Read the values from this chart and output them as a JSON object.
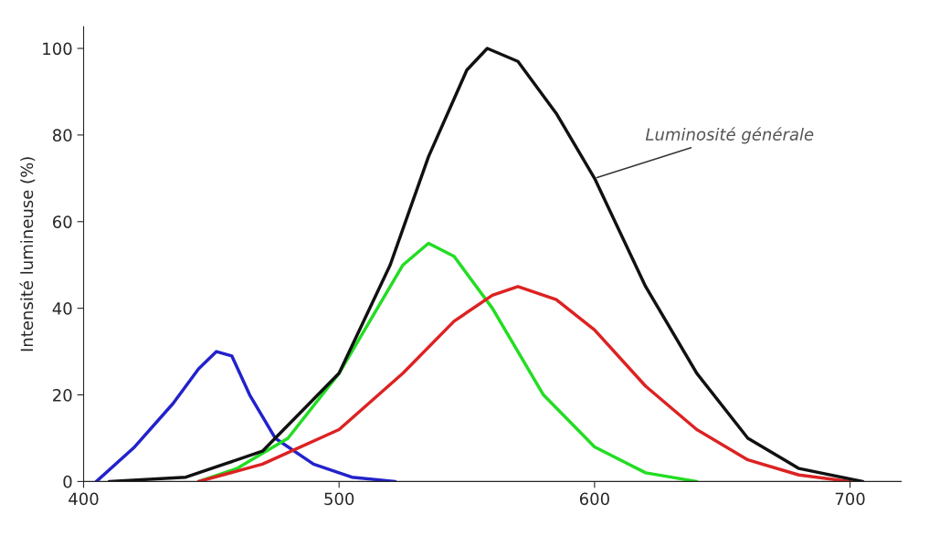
{
  "chart_data": {
    "type": "line",
    "ylabel": "Intensité lumineuse (%)",
    "xlim": [
      400,
      720
    ],
    "ylim": [
      0,
      105
    ],
    "xticks": [
      400,
      500,
      600,
      700
    ],
    "yticks": [
      0,
      20,
      40,
      60,
      80,
      100
    ],
    "grid": false,
    "annotations": [
      {
        "text": "Luminosité générale",
        "x": 600,
        "y": 70
      }
    ],
    "series": [
      {
        "color": "#2222cc",
        "x": [
          405,
          420,
          435,
          445,
          452,
          458,
          465,
          475,
          490,
          505,
          522
        ],
        "values": [
          0,
          8,
          18,
          26,
          30,
          29,
          20,
          10,
          4,
          1,
          0
        ]
      },
      {
        "color": "#22dd22",
        "x": [
          445,
          460,
          480,
          500,
          515,
          525,
          535,
          545,
          560,
          580,
          600,
          620,
          640
        ],
        "values": [
          0,
          3,
          10,
          25,
          40,
          50,
          55,
          52,
          40,
          20,
          8,
          2,
          0
        ]
      },
      {
        "color": "#dd2222",
        "x": [
          445,
          470,
          500,
          525,
          545,
          560,
          570,
          585,
          600,
          620,
          640,
          660,
          680,
          700
        ],
        "values": [
          0,
          4,
          12,
          25,
          37,
          43,
          45,
          42,
          35,
          22,
          12,
          5,
          1.5,
          0
        ]
      },
      {
        "color": "#111111",
        "x": [
          410,
          440,
          470,
          500,
          520,
          535,
          550,
          558,
          570,
          585,
          600,
          620,
          640,
          660,
          680,
          705
        ],
        "values": [
          0,
          1,
          7,
          25,
          50,
          75,
          95,
          100,
          97,
          85,
          70,
          45,
          25,
          10,
          3,
          0
        ]
      }
    ]
  }
}
